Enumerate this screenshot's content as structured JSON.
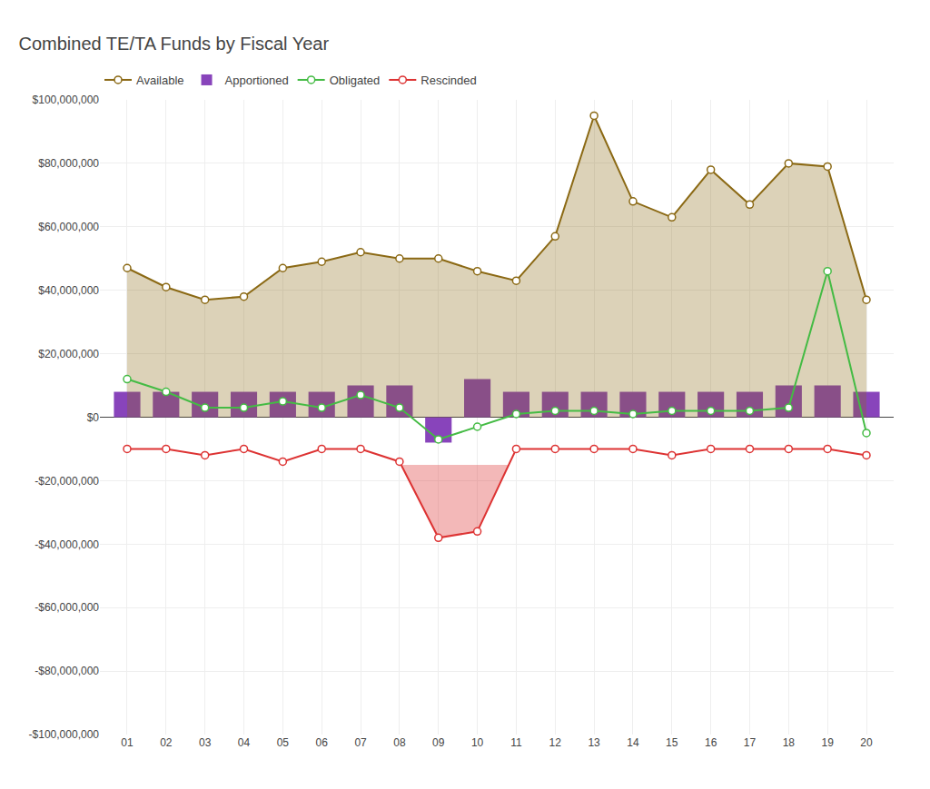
{
  "chart_data": {
    "type": "line",
    "title": "Combined TE/TA Funds by Fiscal Year",
    "categories": [
      "01",
      "02",
      "03",
      "04",
      "05",
      "06",
      "07",
      "08",
      "09",
      "10",
      "11",
      "12",
      "13",
      "14",
      "15",
      "16",
      "17",
      "18",
      "19",
      "20"
    ],
    "series": [
      {
        "name": "Available",
        "type": "area",
        "color": "#8B6914",
        "marker": "circle",
        "values": [
          47000000,
          41000000,
          37000000,
          38000000,
          47000000,
          49000000,
          52000000,
          50000000,
          50000000,
          46000000,
          43000000,
          57000000,
          95000000,
          68000000,
          63000000,
          78000000,
          67000000,
          80000000,
          79000000,
          37000000
        ]
      },
      {
        "name": "Apportioned",
        "type": "bar",
        "color": "#8844BB",
        "values": [
          8000000,
          8000000,
          8000000,
          8000000,
          8000000,
          8000000,
          10000000,
          10000000,
          -8000000,
          12000000,
          8000000,
          8000000,
          8000000,
          8000000,
          8000000,
          8000000,
          8000000,
          10000000,
          10000000,
          8000000
        ]
      },
      {
        "name": "Obligated",
        "type": "line",
        "color": "#44BB44",
        "marker": "circle",
        "values": [
          12000000,
          8000000,
          3000000,
          3000000,
          5000000,
          3000000,
          7000000,
          3000000,
          -7000000,
          -3000000,
          1000000,
          2000000,
          2000000,
          1000000,
          2000000,
          2000000,
          2000000,
          3000000,
          46000000,
          -5000000
        ]
      },
      {
        "name": "Rescinded",
        "type": "line",
        "color": "#DD3333",
        "marker": "circle",
        "threshold": -15000000,
        "values": [
          -10000000,
          -10000000,
          -12000000,
          -10000000,
          -14000000,
          -10000000,
          -10000000,
          -14000000,
          -38000000,
          -36000000,
          -10000000,
          -10000000,
          -10000000,
          -10000000,
          -12000000,
          -10000000,
          -10000000,
          -10000000,
          -10000000,
          -12000000
        ]
      }
    ],
    "ylim": [
      -100000000,
      100000000
    ],
    "yticks": [
      {
        "value": -100000000,
        "label": "-$100,000,000"
      },
      {
        "value": -80000000,
        "label": "-$80,000,000"
      },
      {
        "value": -60000000,
        "label": "-$60,000,000"
      },
      {
        "value": -40000000,
        "label": "-$40,000,000"
      },
      {
        "value": -20000000,
        "label": "-$20,000,000"
      },
      {
        "value": 0,
        "label": "$0"
      },
      {
        "value": 20000000,
        "label": "$20,000,000"
      },
      {
        "value": 40000000,
        "label": "$40,000,000"
      },
      {
        "value": 60000000,
        "label": "$60,000,000"
      },
      {
        "value": 80000000,
        "label": "$80,000,000"
      },
      {
        "value": 100000000,
        "label": "$100,000,000"
      }
    ],
    "grid": true,
    "legend": "top"
  }
}
